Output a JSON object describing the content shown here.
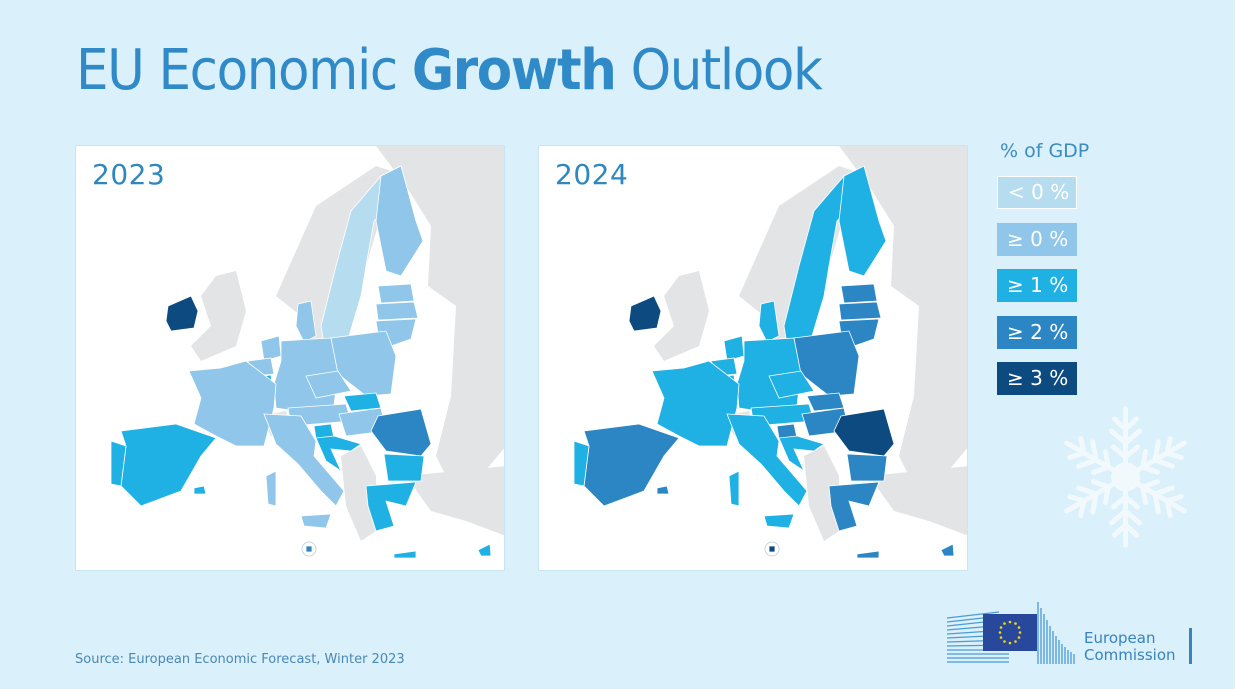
{
  "title": {
    "part1": "EU Economic ",
    "bold": "Growth",
    "part2": " Outlook"
  },
  "legend": {
    "title": "% of GDP",
    "items": [
      {
        "label": "< 0 %",
        "color": "#b6dcef"
      },
      {
        "label": "≥ 0 %",
        "color": "#8fc6e9"
      },
      {
        "label": "≥ 1 %",
        "color": "#1fb1e4"
      },
      {
        "label": "≥ 2 %",
        "color": "#2c86c4"
      },
      {
        "label": "≥ 3 %",
        "color": "#0d4a80"
      }
    ]
  },
  "colors": {
    "background": "#daf0fb",
    "non_eu": "#e3e4e6",
    "title": "#2f8ac7",
    "border": "#ffffff"
  },
  "maps": [
    {
      "year": "2023",
      "countries": {
        "Ireland": "≥ 3 %",
        "Sweden": "< 0 %",
        "Finland": "≥ 0 %",
        "Estonia": "≥ 0 %",
        "Latvia": "≥ 0 %",
        "Lithuania": "≥ 0 %",
        "Denmark": "≥ 0 %",
        "Netherlands": "≥ 0 %",
        "Belgium": "≥ 0 %",
        "Luxembourg": "≥ 1 %",
        "Germany": "≥ 0 %",
        "Poland": "≥ 0 %",
        "Czechia": "≥ 0 %",
        "Slovakia": "≥ 1 %",
        "Austria": "≥ 0 %",
        "Hungary": "≥ 0 %",
        "Slovenia": "≥ 1 %",
        "Croatia": "≥ 1 %",
        "Romania": "≥ 2 %",
        "Bulgaria": "≥ 1 %",
        "Greece": "≥ 1 %",
        "Cyprus": "≥ 1 %",
        "Malta": "≥ 2 %",
        "France": "≥ 0 %",
        "Italy": "≥ 0 %",
        "Spain": "≥ 1 %",
        "Portugal": "≥ 1 %"
      }
    },
    {
      "year": "2024",
      "countries": {
        "Ireland": "≥ 3 %",
        "Sweden": "≥ 1 %",
        "Finland": "≥ 1 %",
        "Estonia": "≥ 2 %",
        "Latvia": "≥ 2 %",
        "Lithuania": "≥ 2 %",
        "Denmark": "≥ 1 %",
        "Netherlands": "≥ 1 %",
        "Belgium": "≥ 1 %",
        "Luxembourg": "≥ 1 %",
        "Germany": "≥ 1 %",
        "Poland": "≥ 2 %",
        "Czechia": "≥ 1 %",
        "Slovakia": "≥ 2 %",
        "Austria": "≥ 1 %",
        "Hungary": "≥ 2 %",
        "Slovenia": "≥ 2 %",
        "Croatia": "≥ 1 %",
        "Romania": "≥ 3 %",
        "Bulgaria": "≥ 2 %",
        "Greece": "≥ 2 %",
        "Cyprus": "≥ 2 %",
        "Malta": "≥ 3 %",
        "France": "≥ 1 %",
        "Italy": "≥ 1 %",
        "Spain": "≥ 2 %",
        "Portugal": "≥ 1 %"
      }
    }
  ],
  "source": "Source: European Economic Forecast, Winter 2023",
  "logo": {
    "line1": "European",
    "line2": "Commission"
  }
}
